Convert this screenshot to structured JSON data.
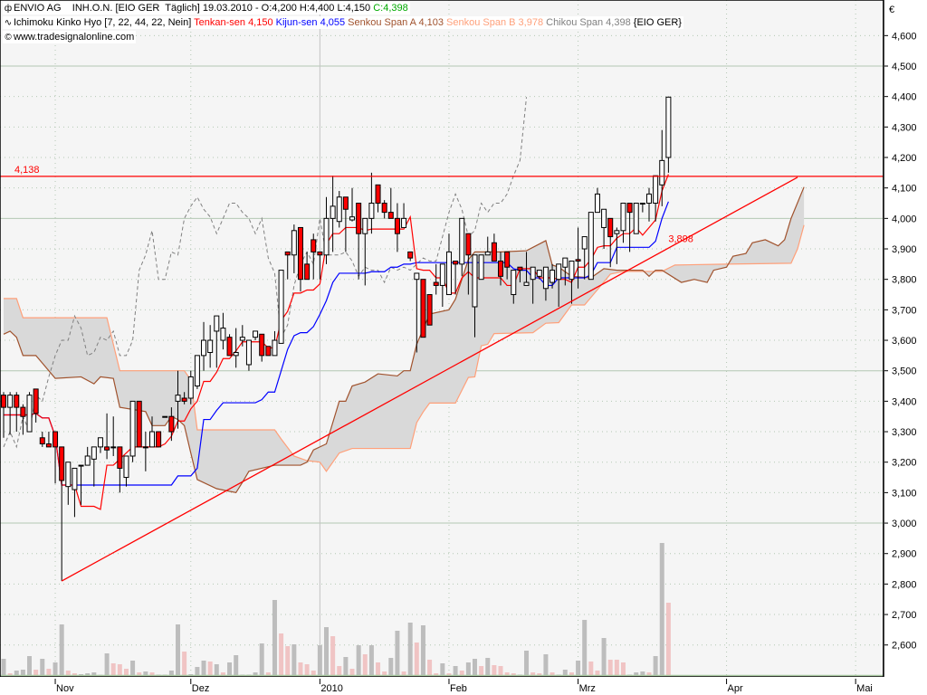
{
  "header": {
    "symbol": "ENVIO AG",
    "info": "    INH.O.N. [EIO GER  Täglich] 19.03.2010 - O:4,200 H:4,400 L:4,150 ",
    "close": "C:4,398",
    "indicator": "Ichimoku Kinko Hyo [7, 22, 44, 22, Nein] ",
    "tenkan": "Tenkan-sen 4,150 ",
    "kijun": "Kijun-sen 4,055 ",
    "senkou_a": "Senkou Span A 4,103 ",
    "senkou_b": "Senkou Span B 3,978 ",
    "chikou": "Chikou Span 4,398 ",
    "suffix": "{EIO GER}",
    "source": "www.tradesignalonline.com",
    "icons": [
      "candlestick-icon",
      "wave-icon",
      "copyright-icon"
    ]
  },
  "colors": {
    "up_candle": "#ffffff",
    "down_candle": "#ff0000",
    "close_text": "#00aa00",
    "tenkan": "#ff0000",
    "kijun": "#0000ff",
    "senkou_a": "#a0522d",
    "senkou_b": "#ffa07a",
    "chikou": "#808080",
    "cloud": "#d9d9d9",
    "volume_gray": "#bdbdbd",
    "volume_pink": "#f0c4c4",
    "background": "#f5f5f5",
    "grid": "#b4c8b4",
    "trendline": "#ff0000"
  },
  "chart_data": {
    "type": "candlestick",
    "currency": "€",
    "ylim": [
      2.5,
      4.65
    ],
    "y_ticks": [
      "4,600",
      "4,500",
      "4,400",
      "4,300",
      "4,200",
      "4,100",
      "4,000",
      "3,900",
      "3,800",
      "3,700",
      "3,600",
      "3,500",
      "3,400",
      "3,300",
      "3,200",
      "3,100",
      "3,000",
      "2,900",
      "2,800",
      "2,700",
      "2,600"
    ],
    "x_ticks": [
      {
        "label": "Nov",
        "date": "2009-11-02"
      },
      {
        "label": "Dez",
        "date": "2009-12-01"
      },
      {
        "label": "2010",
        "date": "2010-01-04"
      },
      {
        "label": "Feb",
        "date": "2010-02-01"
      },
      {
        "label": "Mrz",
        "date": "2010-03-01"
      },
      {
        "label": "Apr",
        "date": "2010-04-01"
      },
      {
        "label": "Mai",
        "date": "2010-05-03"
      }
    ],
    "grid": true,
    "candles_columns": [
      "date",
      "open",
      "high",
      "low",
      "close"
    ],
    "candles": [
      [
        "2009-10-21",
        3.42,
        3.43,
        3.28,
        3.38
      ],
      [
        "2009-10-22",
        3.38,
        3.43,
        3.29,
        3.42
      ],
      [
        "2009-10-23",
        3.42,
        3.43,
        3.3,
        3.38
      ],
      [
        "2009-10-26",
        3.38,
        3.39,
        3.29,
        3.35
      ],
      [
        "2009-10-27",
        3.3,
        3.43,
        3.3,
        3.42
      ],
      [
        "2009-10-28",
        3.44,
        3.44,
        3.33,
        3.36
      ],
      [
        "2009-10-29",
        3.28,
        3.3,
        3.25,
        3.26
      ],
      [
        "2009-10-30",
        3.26,
        3.3,
        3.25,
        3.25
      ],
      [
        "2009-11-02",
        3.3,
        3.3,
        3.13,
        3.25
      ],
      [
        "2009-11-03",
        3.25,
        3.25,
        2.81,
        3.14
      ],
      [
        "2009-11-04",
        3.12,
        3.2,
        3.06,
        3.2
      ],
      [
        "2009-11-05",
        3.11,
        3.18,
        3.02,
        3.18
      ],
      [
        "2009-11-06",
        3.19,
        3.19,
        3.06,
        3.19
      ],
      [
        "2009-11-09",
        3.19,
        3.25,
        3.19,
        3.22
      ],
      [
        "2009-11-10",
        3.21,
        3.25,
        3.12,
        3.25
      ],
      [
        "2009-11-11",
        3.25,
        3.28,
        3.23,
        3.28
      ],
      [
        "2009-11-12",
        3.25,
        3.36,
        3.21,
        3.24
      ],
      [
        "2009-11-13",
        3.25,
        3.35,
        3.22,
        3.25
      ],
      [
        "2009-11-16",
        3.25,
        3.25,
        3.1,
        3.18
      ],
      [
        "2009-11-17",
        3.15,
        3.22,
        3.12,
        3.22
      ],
      [
        "2009-11-18",
        3.22,
        3.4,
        3.2,
        3.4
      ],
      [
        "2009-11-19",
        3.4,
        3.4,
        3.25,
        3.25
      ],
      [
        "2009-11-20",
        3.25,
        3.3,
        3.17,
        3.25
      ],
      [
        "2009-11-23",
        3.25,
        3.35,
        3.25,
        3.3
      ],
      [
        "2009-11-24",
        3.3,
        3.3,
        3.25,
        3.25
      ],
      [
        "2009-11-25",
        3.35,
        3.35,
        3.35,
        3.35
      ],
      [
        "2009-11-26",
        3.35,
        3.38,
        3.27,
        3.3
      ],
      [
        "2009-11-27",
        3.4,
        3.5,
        3.31,
        3.42
      ],
      [
        "2009-11-30",
        3.41,
        3.43,
        3.39,
        3.4
      ],
      [
        "2009-12-01",
        3.41,
        3.5,
        3.39,
        3.48
      ],
      [
        "2009-12-02",
        3.45,
        3.55,
        3.44,
        3.55
      ],
      [
        "2009-12-03",
        3.55,
        3.66,
        3.5,
        3.6
      ],
      [
        "2009-12-04",
        3.56,
        3.65,
        3.51,
        3.6
      ],
      [
        "2009-12-07",
        3.63,
        3.68,
        3.51,
        3.68
      ],
      [
        "2009-12-08",
        3.6,
        3.69,
        3.57,
        3.64
      ],
      [
        "2009-12-09",
        3.61,
        3.62,
        3.55,
        3.55
      ],
      [
        "2009-12-10",
        3.55,
        3.64,
        3.51,
        3.56
      ],
      [
        "2009-12-11",
        3.6,
        3.65,
        3.58,
        3.61
      ],
      [
        "2009-12-14",
        3.52,
        3.6,
        3.5,
        3.6
      ],
      [
        "2009-12-15",
        3.61,
        3.63,
        3.6,
        3.63
      ],
      [
        "2009-12-16",
        3.62,
        3.62,
        3.53,
        3.55
      ],
      [
        "2009-12-17",
        3.58,
        3.58,
        3.55,
        3.55
      ],
      [
        "2009-12-18",
        3.55,
        3.63,
        3.55,
        3.6
      ],
      [
        "2009-12-21",
        3.59,
        3.83,
        3.59,
        3.83
      ],
      [
        "2009-12-22",
        3.89,
        3.89,
        3.8,
        3.88
      ],
      [
        "2009-12-23",
        3.88,
        3.98,
        3.82,
        3.96
      ],
      [
        "2009-12-28",
        3.97,
        3.97,
        3.76,
        3.8
      ],
      [
        "2009-12-29",
        3.85,
        3.89,
        3.8,
        3.8
      ],
      [
        "2009-12-30",
        3.93,
        3.95,
        3.8,
        3.89
      ],
      [
        "2010-01-04",
        3.89,
        3.89,
        3.8,
        3.88
      ],
      [
        "2010-01-05",
        3.88,
        4.07,
        3.85,
        4.0
      ],
      [
        "2010-01-06",
        4.0,
        4.14,
        3.89,
        4.04
      ],
      [
        "2010-01-07",
        3.99,
        4.09,
        3.97,
        4.07
      ],
      [
        "2010-01-08",
        4.07,
        4.07,
        3.89,
        4.03
      ],
      [
        "2010-01-11",
        3.995,
        4.1,
        3.99,
        4.005
      ],
      [
        "2010-01-12",
        4.05,
        4.05,
        3.8,
        3.95
      ],
      [
        "2010-01-13",
        3.95,
        4.0,
        3.78,
        4.0
      ],
      [
        "2010-01-14",
        4.0,
        4.15,
        3.95,
        4.05
      ],
      [
        "2010-01-15",
        4.11,
        4.11,
        4.02,
        4.05
      ],
      [
        "2010-01-18",
        4.05,
        4.06,
        4.0,
        4.02
      ],
      [
        "2010-01-19",
        4.02,
        4.1,
        4.0,
        4.0
      ],
      [
        "2010-01-20",
        4.0,
        4.05,
        3.89,
        3.95
      ],
      [
        "2010-01-21",
        3.97,
        4.05,
        3.97,
        4.0
      ],
      [
        "2010-01-22",
        3.89,
        3.89,
        3.86,
        3.87
      ],
      [
        "2010-01-25",
        3.8,
        3.82,
        3.56,
        3.82
      ],
      [
        "2010-01-26",
        3.8,
        3.8,
        3.61,
        3.61
      ],
      [
        "2010-01-27",
        3.75,
        3.75,
        3.65,
        3.65
      ],
      [
        "2010-01-28",
        3.79,
        3.85,
        3.75,
        3.78
      ],
      [
        "2010-01-29",
        3.78,
        3.85,
        3.71,
        3.85
      ],
      [
        "2010-02-01",
        3.75,
        3.95,
        3.75,
        3.89
      ],
      [
        "2010-02-02",
        3.86,
        3.86,
        3.75,
        3.85
      ],
      [
        "2010-02-03",
        3.85,
        4.0,
        3.81,
        4.0
      ],
      [
        "2010-02-04",
        3.95,
        3.95,
        3.75,
        3.88
      ],
      [
        "2010-02-05",
        3.71,
        3.88,
        3.61,
        3.88
      ],
      [
        "2010-02-08",
        3.8,
        3.88,
        3.8,
        3.88
      ],
      [
        "2010-02-09",
        3.88,
        3.94,
        3.88,
        3.89
      ],
      [
        "2010-02-10",
        3.92,
        3.95,
        3.86,
        3.86
      ],
      [
        "2010-02-11",
        3.86,
        3.89,
        3.78,
        3.81
      ],
      [
        "2010-02-12",
        3.89,
        3.89,
        3.8,
        3.84
      ],
      [
        "2010-02-15",
        3.75,
        3.83,
        3.72,
        3.83
      ],
      [
        "2010-02-16",
        3.84,
        3.84,
        3.79,
        3.83
      ],
      [
        "2010-02-17",
        3.78,
        3.89,
        3.78,
        3.79
      ],
      [
        "2010-02-18",
        3.8,
        3.84,
        3.72,
        3.84
      ],
      [
        "2010-02-19",
        3.81,
        3.83,
        3.8,
        3.83
      ],
      [
        "2010-02-22",
        3.77,
        3.84,
        3.73,
        3.84
      ],
      [
        "2010-02-23",
        3.79,
        3.85,
        3.77,
        3.83
      ],
      [
        "2010-02-24",
        3.8,
        3.85,
        3.71,
        3.85
      ],
      [
        "2010-02-25",
        3.84,
        3.87,
        3.78,
        3.87
      ],
      [
        "2010-02-26",
        3.8,
        3.86,
        3.72,
        3.86
      ],
      [
        "2010-03-01",
        3.865,
        3.97,
        3.77,
        3.86
      ],
      [
        "2010-03-02",
        3.9,
        3.94,
        3.8,
        3.94
      ],
      [
        "2010-03-03",
        3.8,
        4.02,
        3.8,
        4.02
      ],
      [
        "2010-03-04",
        4.02,
        4.1,
        4.02,
        4.08
      ],
      [
        "2010-03-05",
        3.97,
        4.03,
        3.9,
        4.03
      ],
      [
        "2010-03-08",
        4.0,
        4.0,
        3.84,
        3.94
      ],
      [
        "2010-03-09",
        3.95,
        3.97,
        3.85,
        3.96
      ],
      [
        "2010-03-10",
        3.96,
        4.05,
        3.92,
        4.05
      ],
      [
        "2010-03-11",
        4.05,
        4.05,
        3.89,
        4.02
      ],
      [
        "2010-03-12",
        3.95,
        4.05,
        3.95,
        4.05
      ],
      [
        "2010-03-15",
        4.05,
        4.05,
        4.02,
        4.05
      ],
      [
        "2010-03-16",
        4.05,
        4.1,
        3.99,
        4.08
      ],
      [
        "2010-03-17",
        4.05,
        4.14,
        3.99,
        4.14
      ],
      [
        "2010-03-18",
        4.11,
        4.29,
        4.04,
        4.19
      ],
      [
        "2010-03-19",
        4.2,
        4.4,
        4.15,
        4.398
      ]
    ],
    "volume_relative": [
      18,
      2,
      5,
      6,
      21,
      6,
      18,
      7,
      14,
      56,
      5,
      2,
      1,
      2,
      3,
      0.3,
      24,
      13,
      12,
      7,
      16,
      3,
      4,
      3,
      0.5,
      0.5,
      5,
      56,
      26,
      1,
      9,
      16,
      15,
      12,
      3,
      14,
      22,
      0.5,
      0.5,
      3,
      35,
      3,
      83,
      46,
      32,
      34,
      14,
      12,
      5,
      33,
      53,
      43,
      10,
      20,
      7,
      33,
      23,
      33,
      14,
      4,
      19,
      49,
      4,
      58,
      36,
      55,
      17,
      2,
      13,
      2,
      10,
      5,
      14,
      18,
      10,
      19,
      11,
      10,
      3,
      2,
      0.5,
      27,
      3,
      2,
      23,
      3,
      0.5,
      6,
      3,
      16,
      61,
      15,
      5,
      41,
      17,
      17,
      14,
      0.5,
      3,
      4,
      3,
      21,
      146,
      80
    ],
    "volume_pink_days": [
      1,
      5,
      7,
      10,
      11,
      17,
      18,
      19,
      21,
      23,
      28,
      32,
      34,
      41,
      43,
      44,
      46,
      47,
      48,
      51,
      52,
      54,
      56,
      58,
      59,
      62,
      64,
      66,
      67,
      69,
      71,
      74,
      76,
      77,
      78,
      79,
      82,
      83,
      85,
      88,
      91,
      92,
      94,
      95,
      96,
      100,
      103
    ],
    "ichimoku_periods": {
      "tenkan": 7,
      "kijun": 22,
      "senkou_b": 44,
      "shift": 22
    },
    "senkou_a": [
      [
        "2009-10-21",
        3.62
      ],
      [
        "2009-10-22",
        3.63
      ],
      [
        "2009-10-23",
        3.61
      ],
      [
        "2009-10-26",
        3.55
      ],
      [
        "2009-10-28",
        3.55
      ],
      [
        "2009-10-29",
        3.525
      ],
      [
        "2009-11-02",
        3.475
      ],
      [
        "2009-11-06",
        3.48
      ],
      [
        "2009-11-10",
        3.457
      ],
      [
        "2009-11-11",
        3.48
      ],
      [
        "2009-11-13",
        3.475
      ],
      [
        "2009-11-16",
        3.38
      ],
      [
        "2009-11-20",
        3.366
      ],
      [
        "2009-11-23",
        3.32
      ],
      [
        "2009-11-25",
        3.32
      ],
      [
        "2009-11-26",
        3.35
      ],
      [
        "2009-11-27",
        3.34
      ],
      [
        "2009-11-30",
        3.32
      ],
      [
        "2009-12-01",
        3.23
      ],
      [
        "2009-12-02",
        3.143
      ],
      [
        "2009-12-07",
        3.113
      ],
      [
        "2009-12-10",
        3.1
      ],
      [
        "2009-12-11",
        3.134
      ],
      [
        "2009-12-14",
        3.17
      ],
      [
        "2009-12-18",
        3.19
      ],
      [
        "2009-12-28",
        3.19
      ],
      [
        "2009-12-29",
        3.2
      ],
      [
        "2009-12-30",
        3.24
      ],
      [
        "2010-01-05",
        3.26
      ],
      [
        "2010-01-07",
        3.4
      ],
      [
        "2010-01-08",
        3.4
      ],
      [
        "2010-01-11",
        3.45
      ],
      [
        "2010-01-13",
        3.463
      ],
      [
        "2010-01-15",
        3.49
      ],
      [
        "2010-01-20",
        3.483
      ],
      [
        "2010-01-21",
        3.5
      ],
      [
        "2010-01-22",
        3.5
      ],
      [
        "2010-01-25",
        3.587
      ],
      [
        "2010-01-27",
        3.686
      ],
      [
        "2010-02-01",
        3.7
      ],
      [
        "2010-02-02",
        3.735
      ],
      [
        "2010-02-04",
        3.865
      ],
      [
        "2010-02-05",
        3.89
      ],
      [
        "2010-02-11",
        3.89
      ],
      [
        "2010-02-17",
        3.894
      ],
      [
        "2010-02-22",
        3.927
      ],
      [
        "2010-02-23",
        3.847
      ],
      [
        "2010-02-24",
        3.84
      ],
      [
        "2010-02-26",
        3.81
      ],
      [
        "2010-03-03",
        3.805
      ],
      [
        "2010-03-05",
        3.835
      ],
      [
        "2010-03-09",
        3.83
      ],
      [
        "2010-03-15",
        3.83
      ],
      [
        "2010-03-16",
        3.81
      ],
      [
        "2010-03-17",
        3.83
      ],
      [
        "2010-03-18",
        3.83
      ],
      [
        "2010-03-23",
        3.79
      ],
      [
        "2010-03-25",
        3.8
      ],
      [
        "2010-03-29",
        3.79
      ],
      [
        "2010-03-30",
        3.83
      ],
      [
        "2010-04-01",
        3.84
      ],
      [
        "2010-04-06",
        3.876
      ],
      [
        "2010-04-08",
        3.885
      ],
      [
        "2010-04-09",
        3.92
      ],
      [
        "2010-04-13",
        3.93
      ],
      [
        "2010-04-15",
        3.91
      ],
      [
        "2010-04-16",
        3.93
      ],
      [
        "2010-04-19",
        4.0
      ],
      [
        "2010-04-21",
        4.103
      ]
    ],
    "senkou_b": [
      [
        "2009-10-21",
        3.737
      ],
      [
        "2009-10-23",
        3.737
      ],
      [
        "2009-10-26",
        3.674
      ],
      [
        "2009-11-12",
        3.674
      ],
      [
        "2009-11-16",
        3.5
      ],
      [
        "2009-11-30",
        3.5
      ],
      [
        "2009-12-01",
        3.47
      ],
      [
        "2009-12-02",
        3.306
      ],
      [
        "2009-12-18",
        3.306
      ],
      [
        "2009-12-21",
        3.276
      ],
      [
        "2009-12-23",
        3.22
      ],
      [
        "2009-12-29",
        3.205
      ],
      [
        "2010-01-04",
        3.2
      ],
      [
        "2010-01-05",
        3.17
      ],
      [
        "2010-01-07",
        3.23
      ],
      [
        "2010-01-11",
        3.245
      ],
      [
        "2010-01-22",
        3.245
      ],
      [
        "2010-01-25",
        3.33
      ],
      [
        "2010-01-26",
        3.365
      ],
      [
        "2010-01-27",
        3.394
      ],
      [
        "2010-02-02",
        3.394
      ],
      [
        "2010-02-04",
        3.478
      ],
      [
        "2010-02-05",
        3.48
      ],
      [
        "2010-02-08",
        3.582
      ],
      [
        "2010-02-09",
        3.587
      ],
      [
        "2010-02-10",
        3.622
      ],
      [
        "2010-02-18",
        3.625
      ],
      [
        "2010-02-22",
        3.656
      ],
      [
        "2010-02-24",
        3.658
      ],
      [
        "2010-02-26",
        3.716
      ],
      [
        "2010-03-02",
        3.716
      ],
      [
        "2010-03-04",
        3.766
      ],
      [
        "2010-03-08",
        3.817
      ],
      [
        "2010-03-10",
        3.826
      ],
      [
        "2010-03-18",
        3.826
      ],
      [
        "2010-03-22",
        3.847
      ],
      [
        "2010-04-01",
        3.85
      ],
      [
        "2010-04-19",
        3.853
      ],
      [
        "2010-04-20",
        3.9
      ],
      [
        "2010-04-21",
        3.978
      ]
    ],
    "horizontal_line": {
      "value": 4.138,
      "label": "4,138"
    },
    "trendline": {
      "start": {
        "date": "2009-11-03",
        "value": 2.81
      },
      "end": {
        "date": "2010-04-20",
        "value": 4.135
      },
      "label": "3,898",
      "label_date": "2010-03-19"
    }
  }
}
